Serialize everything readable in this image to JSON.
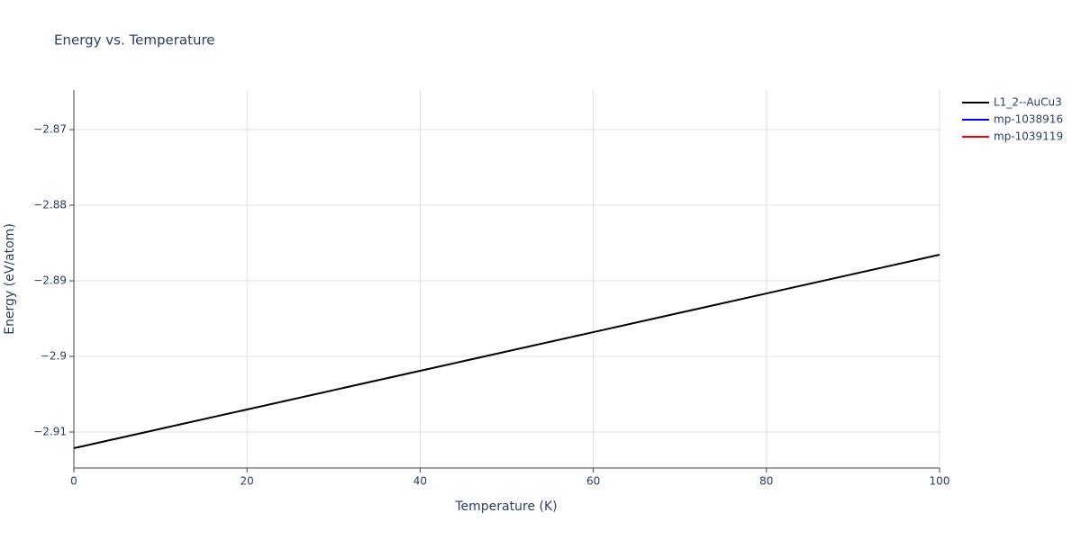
{
  "chart_data": {
    "type": "line",
    "title": "Energy vs. Temperature",
    "x_label": "Temperature (K)",
    "y_label": "Energy (eV/atom)",
    "x": [
      0,
      20,
      40,
      60,
      80,
      100
    ],
    "series": [
      {
        "name": "L1_2--AuCu3",
        "color": "#000000",
        "values": [
          -2.91214,
          -2.90702,
          -2.9019,
          -2.89679,
          -2.89167,
          -2.88655
        ]
      },
      {
        "name": "mp-1038916",
        "color": "#0000ff",
        "values": [
          null,
          null,
          null,
          null,
          null,
          null
        ]
      },
      {
        "name": "mp-1039119",
        "color": "#ff0000",
        "values": [
          null,
          null,
          null,
          null,
          null,
          null
        ]
      }
    ],
    "xlim": [
      0,
      100
    ],
    "xticks": [
      0,
      20,
      40,
      60,
      80,
      100
    ],
    "ylim": [
      -2.91476,
      -2.86476
    ],
    "yticks": [
      {
        "value": -2.91,
        "label": "−2.91"
      },
      {
        "value": -2.9,
        "label": "−2.9"
      },
      {
        "value": -2.89,
        "label": "−2.89"
      },
      {
        "value": -2.88,
        "label": "−2.88"
      },
      {
        "value": -2.87,
        "label": "−2.87"
      }
    ],
    "grid": true,
    "legend": "right"
  }
}
